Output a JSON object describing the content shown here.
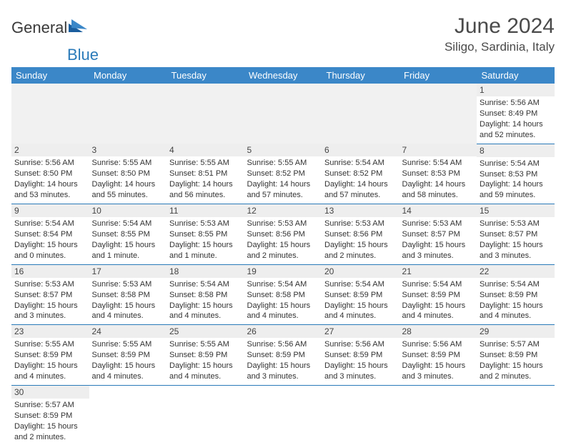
{
  "logo": {
    "text1": "General",
    "text2": "Blue"
  },
  "title": "June 2024",
  "location": "Siligo, Sardinia, Italy",
  "colors": {
    "header_bg": "#3b87c8",
    "header_text": "#ffffff",
    "accent": "#2a7ab9",
    "daynum_bg": "#eeeeee",
    "text": "#333333"
  },
  "weekdays": [
    "Sunday",
    "Monday",
    "Tuesday",
    "Wednesday",
    "Thursday",
    "Friday",
    "Saturday"
  ],
  "weeks": [
    [
      null,
      null,
      null,
      null,
      null,
      null,
      {
        "n": "1",
        "sunrise": "5:56 AM",
        "sunset": "8:49 PM",
        "daylight": "14 hours and 52 minutes."
      }
    ],
    [
      {
        "n": "2",
        "sunrise": "5:56 AM",
        "sunset": "8:50 PM",
        "daylight": "14 hours and 53 minutes."
      },
      {
        "n": "3",
        "sunrise": "5:55 AM",
        "sunset": "8:50 PM",
        "daylight": "14 hours and 55 minutes."
      },
      {
        "n": "4",
        "sunrise": "5:55 AM",
        "sunset": "8:51 PM",
        "daylight": "14 hours and 56 minutes."
      },
      {
        "n": "5",
        "sunrise": "5:55 AM",
        "sunset": "8:52 PM",
        "daylight": "14 hours and 57 minutes."
      },
      {
        "n": "6",
        "sunrise": "5:54 AM",
        "sunset": "8:52 PM",
        "daylight": "14 hours and 57 minutes."
      },
      {
        "n": "7",
        "sunrise": "5:54 AM",
        "sunset": "8:53 PM",
        "daylight": "14 hours and 58 minutes."
      },
      {
        "n": "8",
        "sunrise": "5:54 AM",
        "sunset": "8:53 PM",
        "daylight": "14 hours and 59 minutes."
      }
    ],
    [
      {
        "n": "9",
        "sunrise": "5:54 AM",
        "sunset": "8:54 PM",
        "daylight": "15 hours and 0 minutes."
      },
      {
        "n": "10",
        "sunrise": "5:54 AM",
        "sunset": "8:55 PM",
        "daylight": "15 hours and 1 minute."
      },
      {
        "n": "11",
        "sunrise": "5:53 AM",
        "sunset": "8:55 PM",
        "daylight": "15 hours and 1 minute."
      },
      {
        "n": "12",
        "sunrise": "5:53 AM",
        "sunset": "8:56 PM",
        "daylight": "15 hours and 2 minutes."
      },
      {
        "n": "13",
        "sunrise": "5:53 AM",
        "sunset": "8:56 PM",
        "daylight": "15 hours and 2 minutes."
      },
      {
        "n": "14",
        "sunrise": "5:53 AM",
        "sunset": "8:57 PM",
        "daylight": "15 hours and 3 minutes."
      },
      {
        "n": "15",
        "sunrise": "5:53 AM",
        "sunset": "8:57 PM",
        "daylight": "15 hours and 3 minutes."
      }
    ],
    [
      {
        "n": "16",
        "sunrise": "5:53 AM",
        "sunset": "8:57 PM",
        "daylight": "15 hours and 3 minutes."
      },
      {
        "n": "17",
        "sunrise": "5:53 AM",
        "sunset": "8:58 PM",
        "daylight": "15 hours and 4 minutes."
      },
      {
        "n": "18",
        "sunrise": "5:54 AM",
        "sunset": "8:58 PM",
        "daylight": "15 hours and 4 minutes."
      },
      {
        "n": "19",
        "sunrise": "5:54 AM",
        "sunset": "8:58 PM",
        "daylight": "15 hours and 4 minutes."
      },
      {
        "n": "20",
        "sunrise": "5:54 AM",
        "sunset": "8:59 PM",
        "daylight": "15 hours and 4 minutes."
      },
      {
        "n": "21",
        "sunrise": "5:54 AM",
        "sunset": "8:59 PM",
        "daylight": "15 hours and 4 minutes."
      },
      {
        "n": "22",
        "sunrise": "5:54 AM",
        "sunset": "8:59 PM",
        "daylight": "15 hours and 4 minutes."
      }
    ],
    [
      {
        "n": "23",
        "sunrise": "5:55 AM",
        "sunset": "8:59 PM",
        "daylight": "15 hours and 4 minutes."
      },
      {
        "n": "24",
        "sunrise": "5:55 AM",
        "sunset": "8:59 PM",
        "daylight": "15 hours and 4 minutes."
      },
      {
        "n": "25",
        "sunrise": "5:55 AM",
        "sunset": "8:59 PM",
        "daylight": "15 hours and 4 minutes."
      },
      {
        "n": "26",
        "sunrise": "5:56 AM",
        "sunset": "8:59 PM",
        "daylight": "15 hours and 3 minutes."
      },
      {
        "n": "27",
        "sunrise": "5:56 AM",
        "sunset": "8:59 PM",
        "daylight": "15 hours and 3 minutes."
      },
      {
        "n": "28",
        "sunrise": "5:56 AM",
        "sunset": "8:59 PM",
        "daylight": "15 hours and 3 minutes."
      },
      {
        "n": "29",
        "sunrise": "5:57 AM",
        "sunset": "8:59 PM",
        "daylight": "15 hours and 2 minutes."
      }
    ],
    [
      {
        "n": "30",
        "sunrise": "5:57 AM",
        "sunset": "8:59 PM",
        "daylight": "15 hours and 2 minutes."
      },
      null,
      null,
      null,
      null,
      null,
      null
    ]
  ],
  "labels": {
    "sunrise": "Sunrise:",
    "sunset": "Sunset:",
    "daylight": "Daylight:"
  }
}
